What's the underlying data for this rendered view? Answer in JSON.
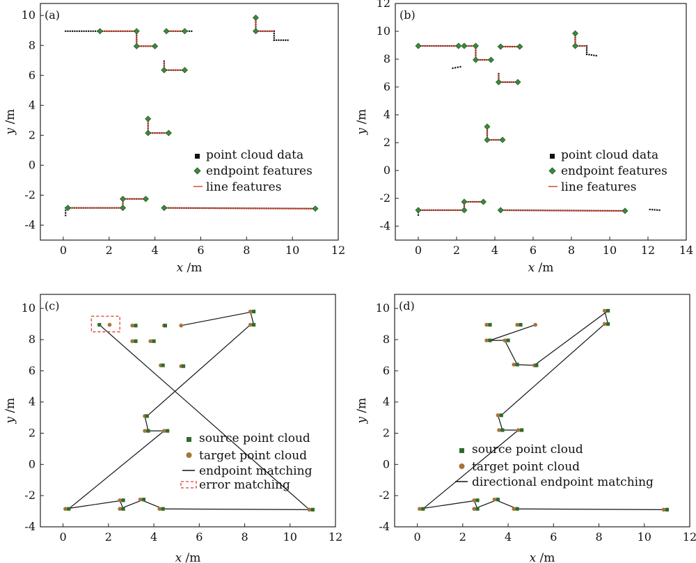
{
  "colors": {
    "line": "#d93a24",
    "endpoint": "#3a8a3a",
    "source": "#2e6b2e",
    "target": "#a8733a",
    "cloud": "#111111",
    "error_box": "#e03a2a"
  },
  "chart_data": [
    {
      "type": "scatter",
      "panel_label": "(a)",
      "xlabel_var": "x",
      "xlabel_unit": " /m",
      "ylabel_var": "y",
      "ylabel_unit": " /m",
      "xlim": [
        -1,
        12
      ],
      "ylim": [
        -5,
        10.8
      ],
      "xticks": [
        0,
        2,
        4,
        6,
        8,
        10,
        12
      ],
      "yticks": [
        -4,
        -2,
        0,
        2,
        4,
        6,
        8,
        10
      ],
      "legend": [
        "point cloud data",
        "endpoint features",
        "line features"
      ],
      "legend_position": "center-right",
      "segments": [
        [
          1.6,
          8.95,
          3.2,
          8.95
        ],
        [
          3.2,
          8.95,
          3.2,
          7.95
        ],
        [
          3.2,
          7.95,
          4.0,
          7.95
        ],
        [
          4.5,
          8.95,
          5.3,
          8.95
        ],
        [
          4.4,
          6.95,
          4.4,
          6.35
        ],
        [
          4.4,
          6.35,
          5.3,
          6.35
        ],
        [
          8.4,
          9.85,
          8.4,
          8.95
        ],
        [
          8.4,
          8.95,
          9.2,
          8.95
        ],
        [
          3.7,
          3.1,
          3.7,
          2.15
        ],
        [
          3.7,
          2.15,
          4.6,
          2.15
        ],
        [
          0.2,
          -2.85,
          2.6,
          -2.85
        ],
        [
          2.6,
          -2.85,
          2.6,
          -2.25
        ],
        [
          2.6,
          -2.25,
          3.6,
          -2.25
        ],
        [
          4.4,
          -2.85,
          11.0,
          -2.9
        ]
      ],
      "endpoints": [
        [
          1.6,
          8.95
        ],
        [
          3.2,
          8.95
        ],
        [
          3.2,
          7.95
        ],
        [
          4.0,
          7.95
        ],
        [
          4.5,
          8.95
        ],
        [
          5.3,
          8.95
        ],
        [
          4.4,
          6.35
        ],
        [
          5.3,
          6.35
        ],
        [
          8.4,
          9.85
        ],
        [
          8.4,
          8.95
        ],
        [
          3.7,
          3.1
        ],
        [
          3.7,
          2.15
        ],
        [
          4.6,
          2.15
        ],
        [
          0.2,
          -2.85
        ],
        [
          2.6,
          -2.85
        ],
        [
          2.6,
          -2.25
        ],
        [
          3.6,
          -2.25
        ],
        [
          4.4,
          -2.85
        ],
        [
          11.0,
          -2.9
        ]
      ],
      "cloud_runs": [
        [
          0.1,
          8.95,
          1.6,
          8.95
        ],
        [
          1.6,
          8.95,
          3.2,
          8.95
        ],
        [
          3.2,
          8.95,
          3.2,
          7.95
        ],
        [
          3.2,
          7.95,
          4.0,
          7.95
        ],
        [
          4.5,
          8.95,
          5.6,
          8.95
        ],
        [
          4.4,
          6.95,
          4.4,
          6.35
        ],
        [
          4.4,
          6.35,
          5.3,
          6.35
        ],
        [
          8.4,
          9.85,
          8.4,
          8.95
        ],
        [
          8.4,
          8.95,
          9.2,
          8.95
        ],
        [
          9.2,
          8.95,
          9.2,
          8.35
        ],
        [
          9.2,
          8.35,
          9.8,
          8.35
        ],
        [
          3.7,
          3.1,
          3.7,
          2.15
        ],
        [
          3.7,
          2.15,
          4.6,
          2.15
        ],
        [
          0.1,
          -3.35,
          0.1,
          -2.85
        ],
        [
          0.2,
          -2.85,
          2.6,
          -2.85
        ],
        [
          2.6,
          -2.85,
          2.6,
          -2.25
        ],
        [
          2.6,
          -2.25,
          3.6,
          -2.25
        ],
        [
          4.4,
          -2.85,
          11.0,
          -2.9
        ]
      ]
    },
    {
      "type": "scatter",
      "panel_label": "(b)",
      "xlabel_var": "x",
      "xlabel_unit": " /m",
      "ylabel_var": "y",
      "ylabel_unit": " /m",
      "xlim": [
        -1.2,
        14
      ],
      "ylim": [
        -5,
        12
      ],
      "xticks": [
        0,
        2,
        4,
        6,
        8,
        10,
        12,
        14
      ],
      "yticks": [
        -4,
        -2,
        0,
        2,
        4,
        6,
        8,
        10,
        12
      ],
      "legend": [
        "point cloud data",
        "endpoint features",
        "line features"
      ],
      "legend_position": "center-right",
      "segments": [
        [
          0.0,
          8.95,
          2.1,
          8.95
        ],
        [
          2.4,
          8.95,
          3.0,
          8.95
        ],
        [
          3.0,
          8.95,
          3.0,
          7.95
        ],
        [
          3.0,
          7.95,
          3.8,
          7.95
        ],
        [
          4.3,
          8.9,
          5.3,
          8.9
        ],
        [
          4.2,
          6.95,
          4.2,
          6.35
        ],
        [
          4.2,
          6.35,
          5.2,
          6.35
        ],
        [
          8.2,
          9.85,
          8.2,
          8.95
        ],
        [
          8.2,
          8.95,
          8.8,
          8.95
        ],
        [
          3.6,
          3.15,
          3.6,
          2.2
        ],
        [
          3.6,
          2.2,
          4.4,
          2.2
        ],
        [
          0.0,
          -2.85,
          2.4,
          -2.85
        ],
        [
          2.4,
          -2.85,
          2.4,
          -2.25
        ],
        [
          2.4,
          -2.25,
          3.4,
          -2.25
        ],
        [
          4.3,
          -2.85,
          10.8,
          -2.9
        ]
      ],
      "endpoints": [
        [
          0.0,
          8.95
        ],
        [
          2.1,
          8.95
        ],
        [
          2.4,
          8.95
        ],
        [
          3.0,
          8.95
        ],
        [
          3.0,
          7.95
        ],
        [
          3.8,
          7.95
        ],
        [
          4.3,
          8.9
        ],
        [
          5.3,
          8.9
        ],
        [
          4.2,
          6.35
        ],
        [
          5.2,
          6.35
        ],
        [
          8.2,
          9.85
        ],
        [
          8.2,
          8.95
        ],
        [
          3.6,
          3.15
        ],
        [
          3.6,
          2.2
        ],
        [
          4.4,
          2.2
        ],
        [
          0.0,
          -2.85
        ],
        [
          2.4,
          -2.85
        ],
        [
          2.4,
          -2.25
        ],
        [
          3.4,
          -2.25
        ],
        [
          4.3,
          -2.85
        ],
        [
          10.8,
          -2.9
        ]
      ],
      "cloud_runs": [
        [
          0.0,
          8.95,
          2.1,
          8.95
        ],
        [
          2.4,
          8.95,
          3.0,
          8.95
        ],
        [
          3.0,
          8.95,
          3.0,
          7.95
        ],
        [
          3.0,
          7.95,
          3.8,
          7.95
        ],
        [
          4.3,
          8.9,
          5.4,
          8.9
        ],
        [
          4.2,
          6.95,
          4.2,
          6.35
        ],
        [
          4.2,
          6.35,
          5.2,
          6.35
        ],
        [
          1.8,
          7.35,
          2.2,
          7.45
        ],
        [
          8.2,
          9.85,
          8.2,
          8.95
        ],
        [
          8.2,
          8.95,
          8.8,
          8.95
        ],
        [
          8.8,
          8.95,
          8.8,
          8.35
        ],
        [
          8.8,
          8.35,
          9.3,
          8.25
        ],
        [
          3.6,
          3.15,
          3.6,
          2.2
        ],
        [
          3.6,
          2.2,
          4.4,
          2.2
        ],
        [
          0.0,
          -3.2,
          0.0,
          -2.85
        ],
        [
          0.0,
          -2.85,
          2.4,
          -2.85
        ],
        [
          2.4,
          -2.85,
          2.4,
          -2.25
        ],
        [
          2.4,
          -2.25,
          3.4,
          -2.25
        ],
        [
          4.3,
          -2.85,
          10.8,
          -2.9
        ],
        [
          12.1,
          -2.8,
          12.6,
          -2.85
        ]
      ]
    },
    {
      "type": "scatter",
      "panel_label": "(c)",
      "xlabel_var": "x",
      "xlabel_unit": " /m",
      "ylabel_var": "y",
      "ylabel_unit": " /m",
      "xlim": [
        -1,
        12
      ],
      "ylim": [
        -4,
        10.9
      ],
      "xticks": [
        0,
        2,
        4,
        6,
        8,
        10,
        12
      ],
      "yticks": [
        -4,
        -2,
        0,
        2,
        4,
        6,
        8,
        10
      ],
      "legend": [
        "source point cloud",
        "target point cloud",
        "endpoint matching",
        "error matching"
      ],
      "legend_position": "bottom-center",
      "source": [
        [
          3.2,
          8.9
        ],
        [
          4.5,
          8.9
        ],
        [
          3.2,
          7.9
        ],
        [
          4.0,
          7.9
        ],
        [
          4.4,
          6.35
        ],
        [
          5.3,
          6.3
        ],
        [
          8.4,
          9.8
        ],
        [
          8.4,
          8.95
        ],
        [
          3.7,
          3.1
        ],
        [
          3.75,
          2.15
        ],
        [
          4.6,
          2.15
        ],
        [
          0.25,
          -2.85
        ],
        [
          2.65,
          -2.3
        ],
        [
          2.65,
          -2.85
        ],
        [
          3.55,
          -2.25
        ],
        [
          4.4,
          -2.85
        ],
        [
          11.0,
          -2.9
        ],
        [
          1.6,
          8.95
        ]
      ],
      "target": [
        [
          3.05,
          8.9
        ],
        [
          4.45,
          8.9
        ],
        [
          3.05,
          7.9
        ],
        [
          3.85,
          7.9
        ],
        [
          4.3,
          6.35
        ],
        [
          5.2,
          6.3
        ],
        [
          5.2,
          8.9
        ],
        [
          8.25,
          9.8
        ],
        [
          8.25,
          8.95
        ],
        [
          3.6,
          3.1
        ],
        [
          3.6,
          2.15
        ],
        [
          4.45,
          2.15
        ],
        [
          0.1,
          -2.85
        ],
        [
          2.5,
          -2.3
        ],
        [
          2.5,
          -2.85
        ],
        [
          3.4,
          -2.25
        ],
        [
          4.25,
          -2.85
        ],
        [
          10.85,
          -2.9
        ],
        [
          2.05,
          8.95
        ]
      ],
      "error_box": [
        1.25,
        8.5,
        2.5,
        9.5
      ]
    },
    {
      "type": "scatter",
      "panel_label": "(d)",
      "xlabel_var": "x",
      "xlabel_unit": " /m",
      "ylabel_var": "y",
      "ylabel_unit": " /m",
      "xlim": [
        -1,
        12
      ],
      "ylim": [
        -4,
        10.9
      ],
      "xticks": [
        0,
        2,
        4,
        6,
        8,
        10,
        12
      ],
      "yticks": [
        -4,
        -2,
        0,
        2,
        4,
        6,
        8,
        10
      ],
      "legend": [
        "source point cloud",
        "target point cloud",
        "directional endpoint matching"
      ],
      "legend_position": "bottom-left",
      "source": [
        [
          3.2,
          8.95
        ],
        [
          4.55,
          8.95
        ],
        [
          3.2,
          7.95
        ],
        [
          4.0,
          7.95
        ],
        [
          4.4,
          6.4
        ],
        [
          5.25,
          6.35
        ],
        [
          8.4,
          9.85
        ],
        [
          8.4,
          9.0
        ],
        [
          3.7,
          3.15
        ],
        [
          3.75,
          2.2
        ],
        [
          4.6,
          2.2
        ],
        [
          0.25,
          -2.85
        ],
        [
          2.65,
          -2.3
        ],
        [
          2.65,
          -2.85
        ],
        [
          3.55,
          -2.25
        ],
        [
          4.4,
          -2.85
        ],
        [
          11.0,
          -2.9
        ]
      ],
      "target": [
        [
          3.05,
          8.95
        ],
        [
          4.4,
          8.95
        ],
        [
          5.2,
          8.95
        ],
        [
          3.05,
          7.95
        ],
        [
          3.85,
          7.95
        ],
        [
          4.25,
          6.4
        ],
        [
          5.15,
          6.35
        ],
        [
          8.25,
          9.85
        ],
        [
          8.25,
          9.0
        ],
        [
          3.55,
          3.15
        ],
        [
          3.6,
          2.2
        ],
        [
          4.45,
          2.2
        ],
        [
          0.1,
          -2.85
        ],
        [
          2.5,
          -2.3
        ],
        [
          2.5,
          -2.85
        ],
        [
          3.4,
          -2.25
        ],
        [
          4.25,
          -2.85
        ],
        [
          10.85,
          -2.9
        ]
      ]
    }
  ]
}
